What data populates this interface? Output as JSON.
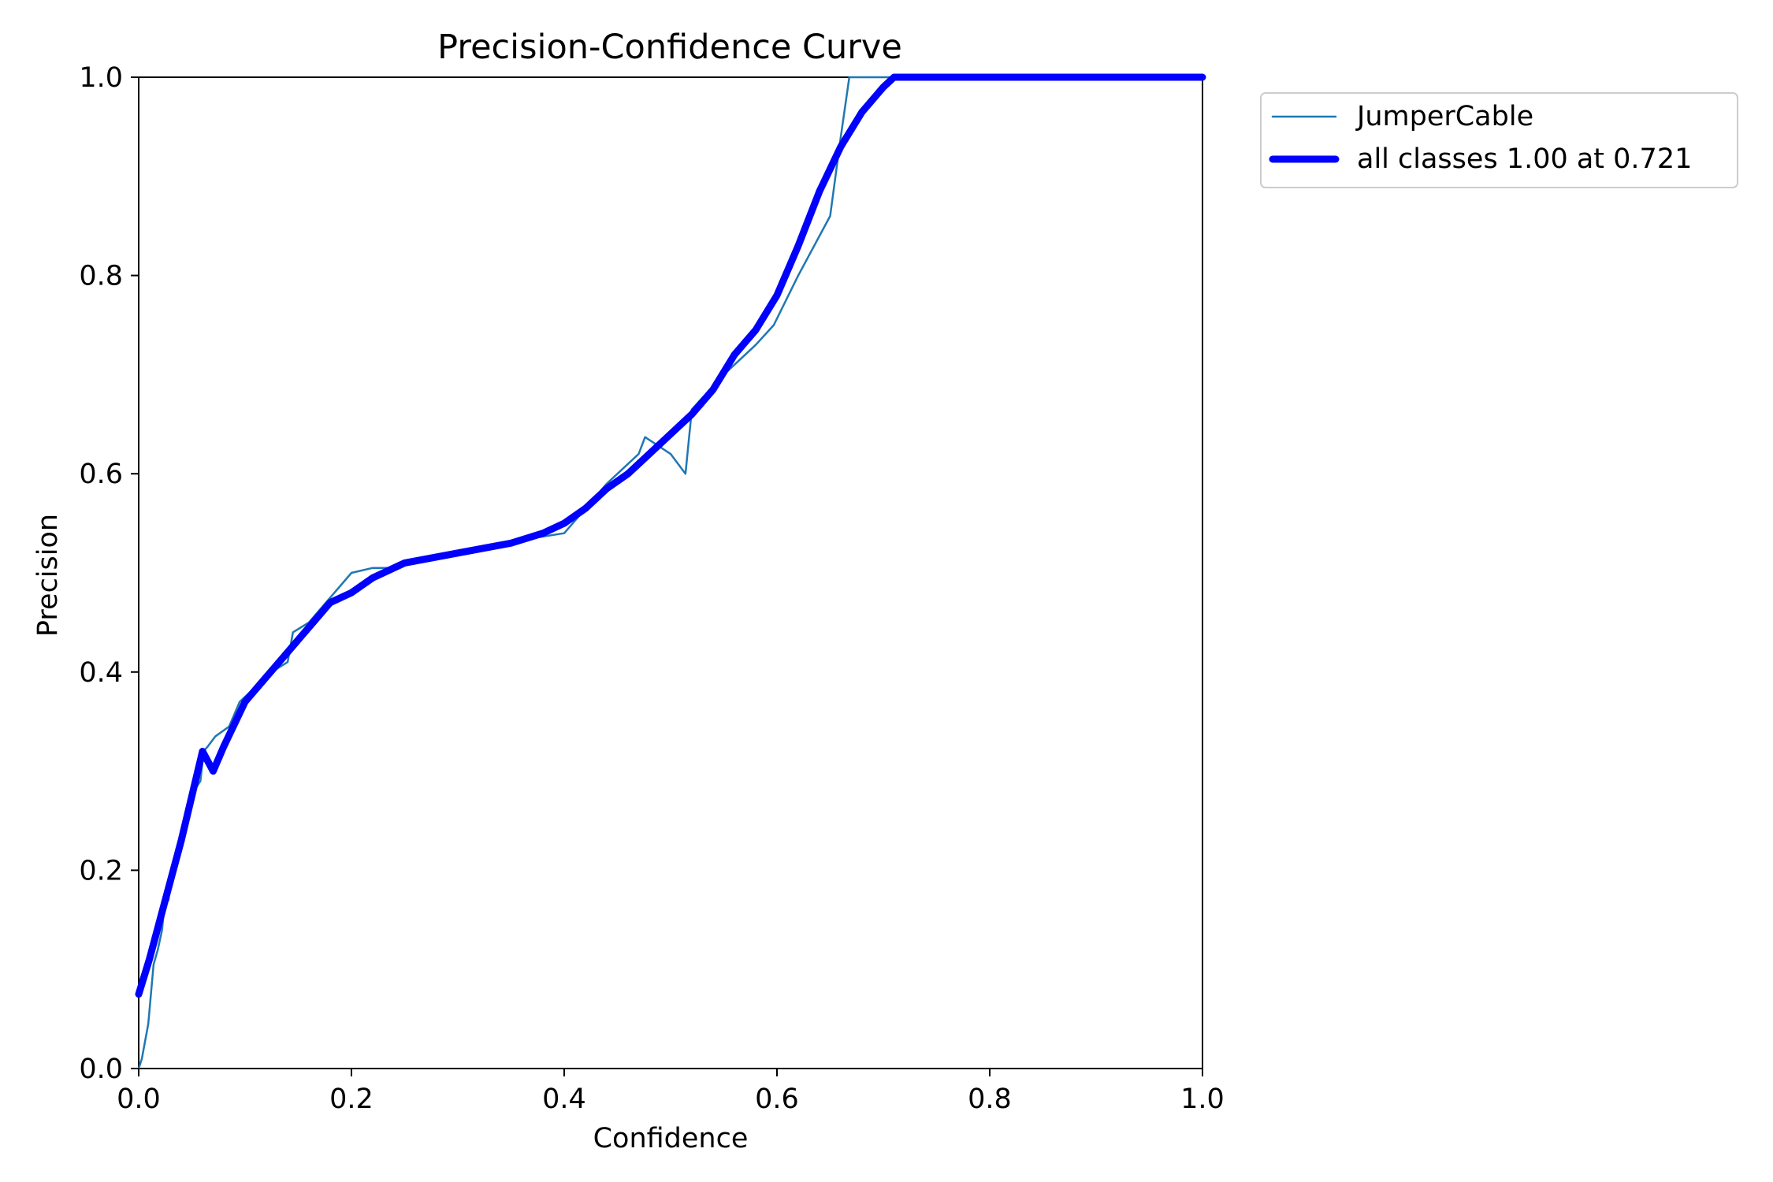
{
  "chart_data": {
    "type": "line",
    "title": "Precision-Confidence Curve",
    "xlabel": "Confidence",
    "ylabel": "Precision",
    "xlim": [
      0,
      1
    ],
    "ylim": [
      0,
      1
    ],
    "grid": false,
    "legend_position": "outside-top-right",
    "xticks": [
      "0.0",
      "0.2",
      "0.4",
      "0.6",
      "0.8",
      "1.0"
    ],
    "yticks": [
      "0.0",
      "0.2",
      "0.4",
      "0.6",
      "0.8",
      "1.0"
    ],
    "series": [
      {
        "name": "JumperCable",
        "color": "#1f77b4",
        "style": "thin",
        "x": [
          0.0,
          0.003,
          0.009,
          0.014,
          0.018,
          0.022,
          0.025,
          0.028,
          0.031,
          0.035,
          0.038,
          0.042,
          0.046,
          0.049,
          0.052,
          0.055,
          0.058,
          0.061,
          0.065,
          0.072,
          0.085,
          0.095,
          0.11,
          0.125,
          0.14,
          0.145,
          0.16,
          0.18,
          0.2,
          0.22,
          0.24,
          0.26,
          0.3,
          0.34,
          0.37,
          0.4,
          0.44,
          0.47,
          0.476,
          0.5,
          0.514,
          0.52,
          0.55,
          0.58,
          0.597,
          0.62,
          0.65,
          0.66,
          0.668,
          0.7,
          0.721,
          0.8,
          1.0
        ],
        "y": [
          0.0,
          0.01,
          0.045,
          0.105,
          0.12,
          0.14,
          0.175,
          0.17,
          0.195,
          0.215,
          0.225,
          0.23,
          0.25,
          0.26,
          0.28,
          0.285,
          0.29,
          0.32,
          0.325,
          0.335,
          0.345,
          0.37,
          0.385,
          0.4,
          0.41,
          0.44,
          0.45,
          0.475,
          0.5,
          0.505,
          0.505,
          0.51,
          0.52,
          0.53,
          0.535,
          0.54,
          0.59,
          0.62,
          0.637,
          0.62,
          0.6,
          0.665,
          0.7,
          0.73,
          0.75,
          0.8,
          0.86,
          0.94,
          1.0,
          1.0,
          1.0,
          1.0,
          1.0
        ]
      },
      {
        "name": "all classes 1.00 at 0.721",
        "color": "#0000ff",
        "style": "thick",
        "x": [
          0.0,
          0.01,
          0.02,
          0.03,
          0.04,
          0.05,
          0.06,
          0.07,
          0.08,
          0.1,
          0.12,
          0.14,
          0.16,
          0.18,
          0.2,
          0.22,
          0.25,
          0.3,
          0.35,
          0.38,
          0.4,
          0.42,
          0.44,
          0.46,
          0.48,
          0.5,
          0.52,
          0.54,
          0.56,
          0.58,
          0.6,
          0.62,
          0.64,
          0.66,
          0.68,
          0.7,
          0.71,
          0.721,
          0.8,
          0.9,
          1.0
        ],
        "y": [
          0.075,
          0.11,
          0.15,
          0.19,
          0.23,
          0.275,
          0.32,
          0.3,
          0.325,
          0.37,
          0.395,
          0.42,
          0.445,
          0.47,
          0.48,
          0.495,
          0.51,
          0.52,
          0.53,
          0.54,
          0.55,
          0.565,
          0.585,
          0.6,
          0.62,
          0.64,
          0.66,
          0.685,
          0.72,
          0.745,
          0.78,
          0.83,
          0.885,
          0.93,
          0.965,
          0.99,
          1.0,
          1.0,
          1.0,
          1.0,
          1.0
        ]
      }
    ]
  }
}
